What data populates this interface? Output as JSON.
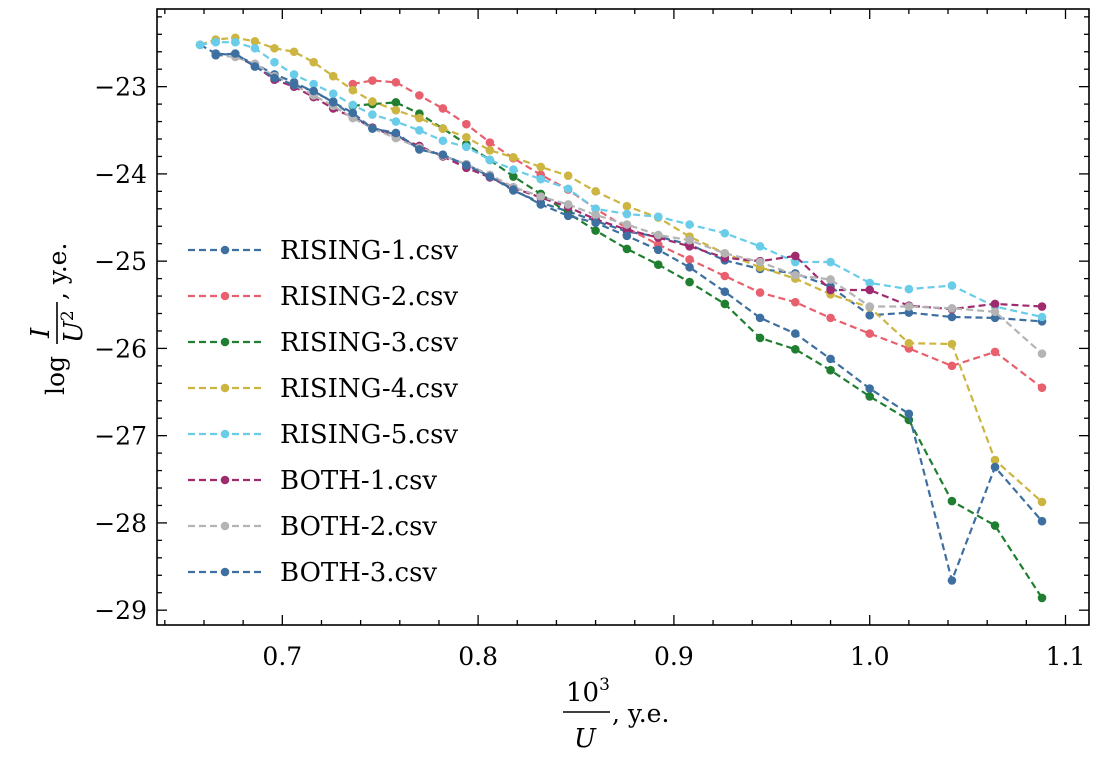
{
  "chart_data": {
    "type": "line",
    "xlim": [
      0.636,
      1.112
    ],
    "ylim": [
      -29.17,
      -22.11
    ],
    "xticks": [
      {
        "value": 0.7,
        "label": "0.7"
      },
      {
        "value": 0.8,
        "label": "0.8"
      },
      {
        "value": 0.9,
        "label": "0.9"
      },
      {
        "value": 1.0,
        "label": "1.0"
      },
      {
        "value": 1.1,
        "label": "1.1"
      }
    ],
    "yticks": [
      {
        "value": -23,
        "label": "−23"
      },
      {
        "value": -24,
        "label": "−24"
      },
      {
        "value": -25,
        "label": "−25"
      },
      {
        "value": -26,
        "label": "−26"
      },
      {
        "value": -27,
        "label": "−27"
      },
      {
        "value": -28,
        "label": "−28"
      },
      {
        "value": -29,
        "label": "−29"
      }
    ],
    "xlabel": {
      "numerator_base": "10",
      "numerator_exp": "3",
      "denominator": "U",
      "suffix": ", y.e."
    },
    "ylabel": {
      "prefix": "log",
      "numerator": "I",
      "denominator_base": "U",
      "denominator_exp": "2",
      "suffix": ", y.e."
    },
    "legend_position": "left-center",
    "series": [
      {
        "name": "RISING-1.csv",
        "color": "#3d6fa0",
        "x": [
          0.658,
          0.666,
          0.676,
          0.686,
          0.696,
          0.706,
          0.716,
          0.726,
          0.736,
          0.746,
          0.758,
          0.77,
          0.782,
          0.794,
          0.806,
          0.818,
          0.832,
          0.846,
          0.86,
          0.876,
          0.892,
          0.908,
          0.926,
          0.944,
          0.962,
          0.98,
          1.0,
          1.02,
          1.042,
          1.064,
          1.088
        ],
        "y": [
          -22.52,
          -22.62,
          -22.64,
          -22.74,
          -22.86,
          -22.95,
          -23.06,
          -23.17,
          -23.34,
          -23.47,
          -23.55,
          -23.71,
          -23.79,
          -23.89,
          -24.03,
          -24.19,
          -24.33,
          -24.43,
          -24.54,
          -24.66,
          -24.72,
          -24.81,
          -24.99,
          -25.09,
          -25.14,
          -25.29,
          -25.62,
          -25.59,
          -25.64,
          -25.65,
          -25.69
        ]
      },
      {
        "name": "RISING-2.csv",
        "color": "#e8606e",
        "x": [
          0.736,
          0.746,
          0.758,
          0.77,
          0.782,
          0.794,
          0.806,
          0.818,
          0.832,
          0.846,
          0.86,
          0.876,
          0.892,
          0.908,
          0.926,
          0.944,
          0.962,
          0.98,
          1.0,
          1.02,
          1.042,
          1.064,
          1.088
        ],
        "y": [
          -22.97,
          -22.93,
          -22.95,
          -23.1,
          -23.25,
          -23.43,
          -23.64,
          -23.82,
          -24.01,
          -24.18,
          -24.4,
          -24.62,
          -24.81,
          -24.98,
          -25.17,
          -25.36,
          -25.47,
          -25.65,
          -25.83,
          -26.0,
          -26.2,
          -26.04,
          -26.45
        ]
      },
      {
        "name": "RISING-3.csv",
        "color": "#1f7e2f",
        "x": [
          0.736,
          0.746,
          0.758,
          0.77,
          0.782,
          0.794,
          0.806,
          0.818,
          0.832,
          0.846,
          0.86,
          0.876,
          0.892,
          0.908,
          0.926,
          0.944,
          0.962,
          0.98,
          1.0,
          1.02,
          1.042,
          1.064,
          1.088
        ],
        "y": [
          -23.22,
          -23.2,
          -23.18,
          -23.31,
          -23.48,
          -23.66,
          -23.84,
          -24.03,
          -24.23,
          -24.45,
          -24.65,
          -24.86,
          -25.04,
          -25.24,
          -25.49,
          -25.88,
          -26.01,
          -26.25,
          -26.55,
          -26.82,
          -27.75,
          -28.03,
          -28.86
        ]
      },
      {
        "name": "RISING-4.csv",
        "color": "#cdb541",
        "x": [
          0.658,
          0.666,
          0.676,
          0.686,
          0.696,
          0.706,
          0.716,
          0.726,
          0.736,
          0.746,
          0.758,
          0.77,
          0.782,
          0.794,
          0.806,
          0.818,
          0.832,
          0.846,
          0.86,
          0.876,
          0.892,
          0.908,
          0.926,
          0.944,
          0.962,
          0.98,
          1.0,
          1.02,
          1.042,
          1.064,
          1.088
        ],
        "y": [
          -22.52,
          -22.46,
          -22.44,
          -22.48,
          -22.56,
          -22.6,
          -22.72,
          -22.88,
          -23.04,
          -23.17,
          -23.27,
          -23.36,
          -23.48,
          -23.58,
          -23.73,
          -23.81,
          -23.92,
          -24.02,
          -24.2,
          -24.37,
          -24.5,
          -24.72,
          -24.91,
          -25.07,
          -25.2,
          -25.38,
          -25.53,
          -25.94,
          -25.95,
          -27.28,
          -27.76
        ]
      },
      {
        "name": "RISING-5.csv",
        "color": "#69cce9",
        "x": [
          0.658,
          0.666,
          0.676,
          0.686,
          0.696,
          0.706,
          0.716,
          0.726,
          0.736,
          0.746,
          0.758,
          0.77,
          0.782,
          0.794,
          0.806,
          0.818,
          0.832,
          0.846,
          0.86,
          0.876,
          0.892,
          0.908,
          0.926,
          0.944,
          0.962,
          0.98,
          1.0,
          1.02,
          1.042,
          1.064,
          1.088
        ],
        "y": [
          -22.52,
          -22.49,
          -22.49,
          -22.56,
          -22.72,
          -22.86,
          -22.97,
          -23.08,
          -23.21,
          -23.32,
          -23.4,
          -23.5,
          -23.62,
          -23.69,
          -23.84,
          -23.95,
          -24.06,
          -24.17,
          -24.4,
          -24.46,
          -24.49,
          -24.58,
          -24.68,
          -24.83,
          -25.01,
          -25.01,
          -25.25,
          -25.32,
          -25.28,
          -25.52,
          -25.64
        ]
      },
      {
        "name": "BOTH-1.csv",
        "color": "#a02a6e",
        "x": [
          0.676,
          0.686,
          0.696,
          0.706,
          0.716,
          0.726,
          0.736,
          0.746,
          0.758,
          0.77,
          0.782,
          0.794,
          0.806,
          0.818,
          0.832,
          0.846,
          0.86,
          0.876,
          0.892,
          0.908,
          0.926,
          0.944,
          0.962,
          0.98,
          1.0,
          1.02,
          1.042,
          1.064,
          1.088
        ],
        "y": [
          -22.65,
          -22.76,
          -22.92,
          -23.0,
          -23.12,
          -23.25,
          -23.35,
          -23.47,
          -23.57,
          -23.68,
          -23.8,
          -23.93,
          -24.04,
          -24.16,
          -24.27,
          -24.38,
          -24.52,
          -24.64,
          -24.73,
          -24.83,
          -24.96,
          -25.0,
          -24.94,
          -25.33,
          -25.33,
          -25.51,
          -25.55,
          -25.49,
          -25.52
        ]
      },
      {
        "name": "BOTH-2.csv",
        "color": "#b4b4b4",
        "x": [
          0.666,
          0.676,
          0.686,
          0.696,
          0.706,
          0.716,
          0.726,
          0.736,
          0.746,
          0.758,
          0.77,
          0.782,
          0.794,
          0.806,
          0.818,
          0.832,
          0.846,
          0.86,
          0.876,
          0.892,
          0.908,
          0.926,
          0.944,
          0.962,
          0.98,
          1.0,
          1.02,
          1.042,
          1.064,
          1.088
        ],
        "y": [
          -22.64,
          -22.66,
          -22.74,
          -22.88,
          -22.98,
          -23.1,
          -23.22,
          -23.36,
          -23.48,
          -23.59,
          -23.7,
          -23.79,
          -23.89,
          -24.01,
          -24.15,
          -24.26,
          -24.35,
          -24.47,
          -24.58,
          -24.7,
          -24.76,
          -24.91,
          -25.01,
          -25.16,
          -25.21,
          -25.52,
          -25.52,
          -25.54,
          -25.58,
          -26.06
        ]
      },
      {
        "name": "BOTH-3.csv",
        "color": "#3d6fa0",
        "x": [
          0.666,
          0.676,
          0.686,
          0.696,
          0.706,
          0.716,
          0.726,
          0.736,
          0.746,
          0.758,
          0.77,
          0.782,
          0.794,
          0.806,
          0.818,
          0.832,
          0.846,
          0.86,
          0.876,
          0.892,
          0.908,
          0.926,
          0.944,
          0.962,
          0.98,
          1.0,
          1.02,
          1.042,
          1.064,
          1.088
        ],
        "y": [
          -22.64,
          -22.62,
          -22.77,
          -22.9,
          -22.98,
          -23.05,
          -23.18,
          -23.3,
          -23.48,
          -23.53,
          -23.72,
          -23.78,
          -23.9,
          -24.03,
          -24.18,
          -24.35,
          -24.48,
          -24.56,
          -24.71,
          -24.87,
          -25.07,
          -25.35,
          -25.65,
          -25.83,
          -26.12,
          -26.46,
          -26.75,
          -28.66,
          -27.36,
          -27.98
        ]
      }
    ]
  }
}
